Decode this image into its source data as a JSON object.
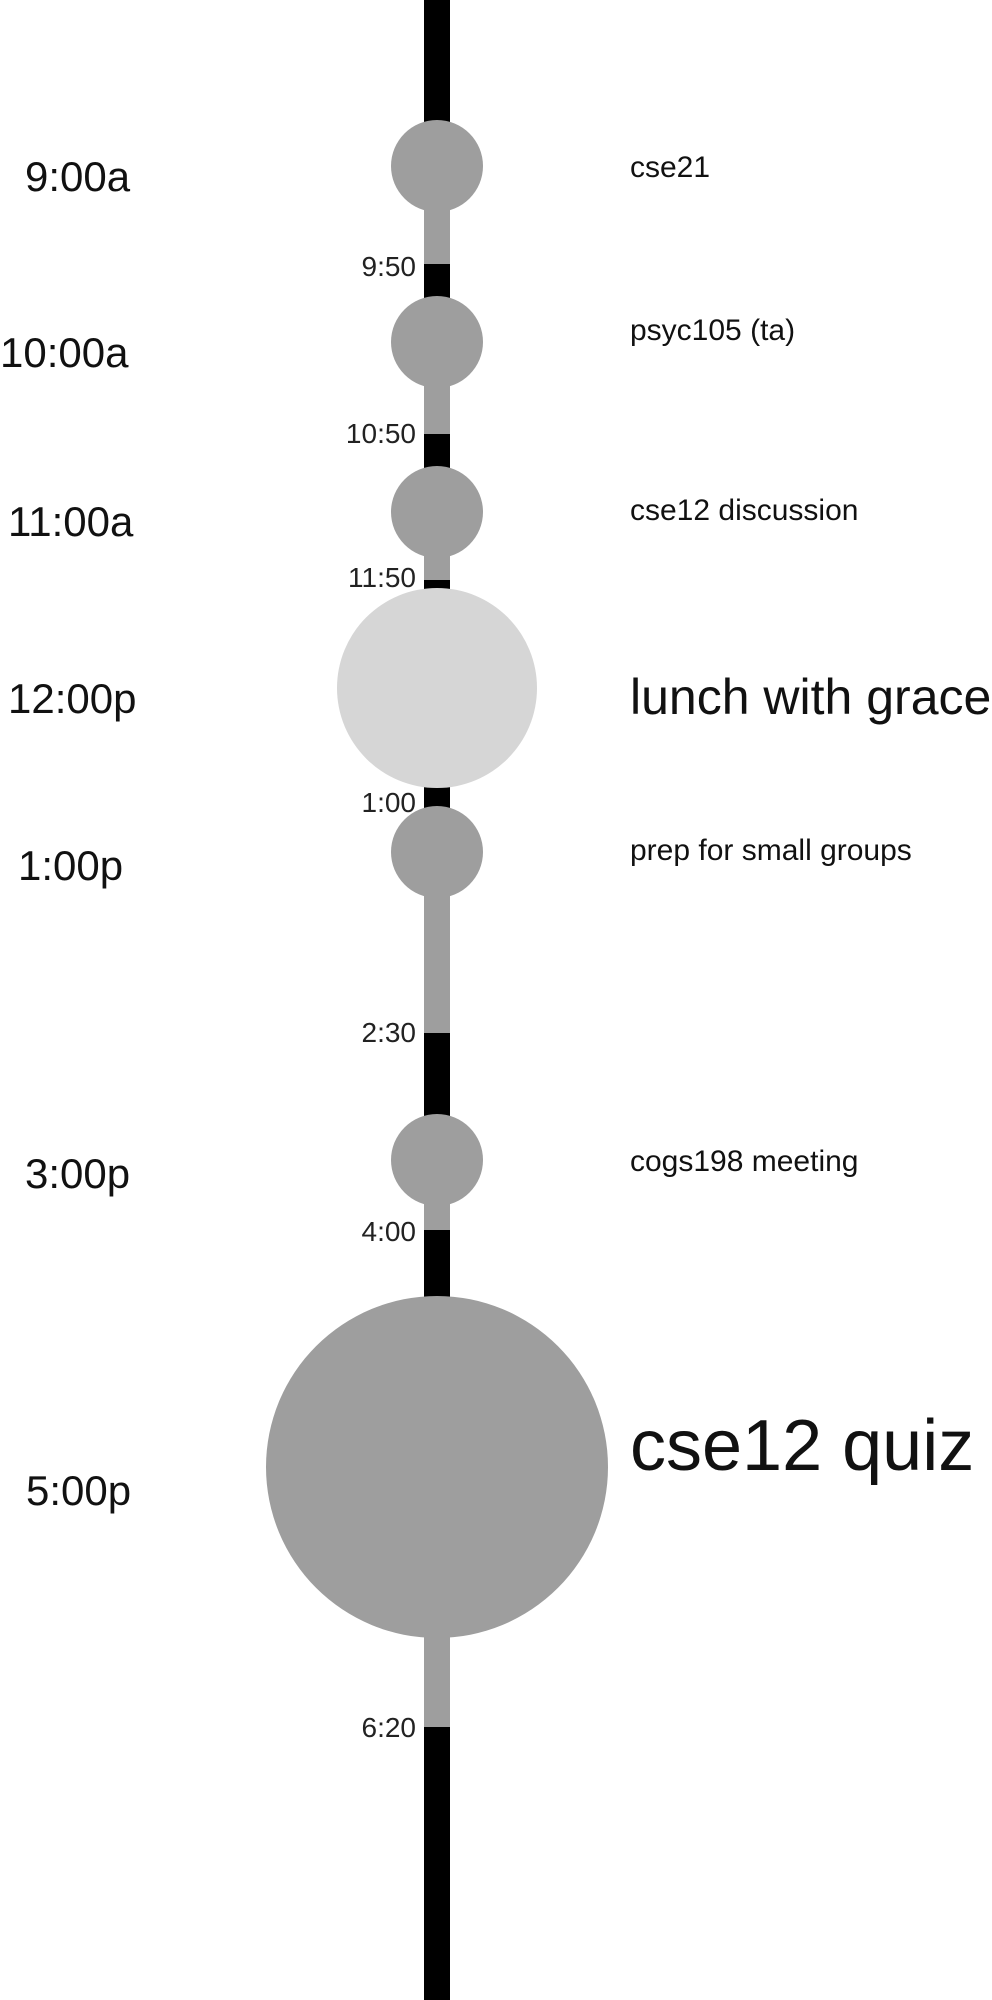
{
  "colors": {
    "spine": "#000000",
    "event_fill": "#9e9e9e",
    "highlight_fill": "#d6d6d6",
    "text": "#111111"
  },
  "events": [
    {
      "start": "9:00a",
      "end": "9:50",
      "title": "cse21",
      "fill": "#9e9e9e"
    },
    {
      "start": "10:00a",
      "end": "10:50",
      "title": "psyc105 (ta)",
      "fill": "#9e9e9e"
    },
    {
      "start": "11:00a",
      "end": "11:50",
      "title": "cse12 discussion",
      "fill": "#9e9e9e"
    },
    {
      "start": "12:00p",
      "end": "1:00",
      "title": "lunch with grace",
      "fill": "#d6d6d6"
    },
    {
      "start": "1:00p",
      "end": "2:30",
      "title": "prep for small groups",
      "fill": "#9e9e9e"
    },
    {
      "start": "3:00p",
      "end": "4:00",
      "title": "cogs198 meeting",
      "fill": "#9e9e9e"
    },
    {
      "start": "5:00p",
      "end": "6:20",
      "title": "cse12 quiz",
      "fill": "#9e9e9e"
    }
  ]
}
